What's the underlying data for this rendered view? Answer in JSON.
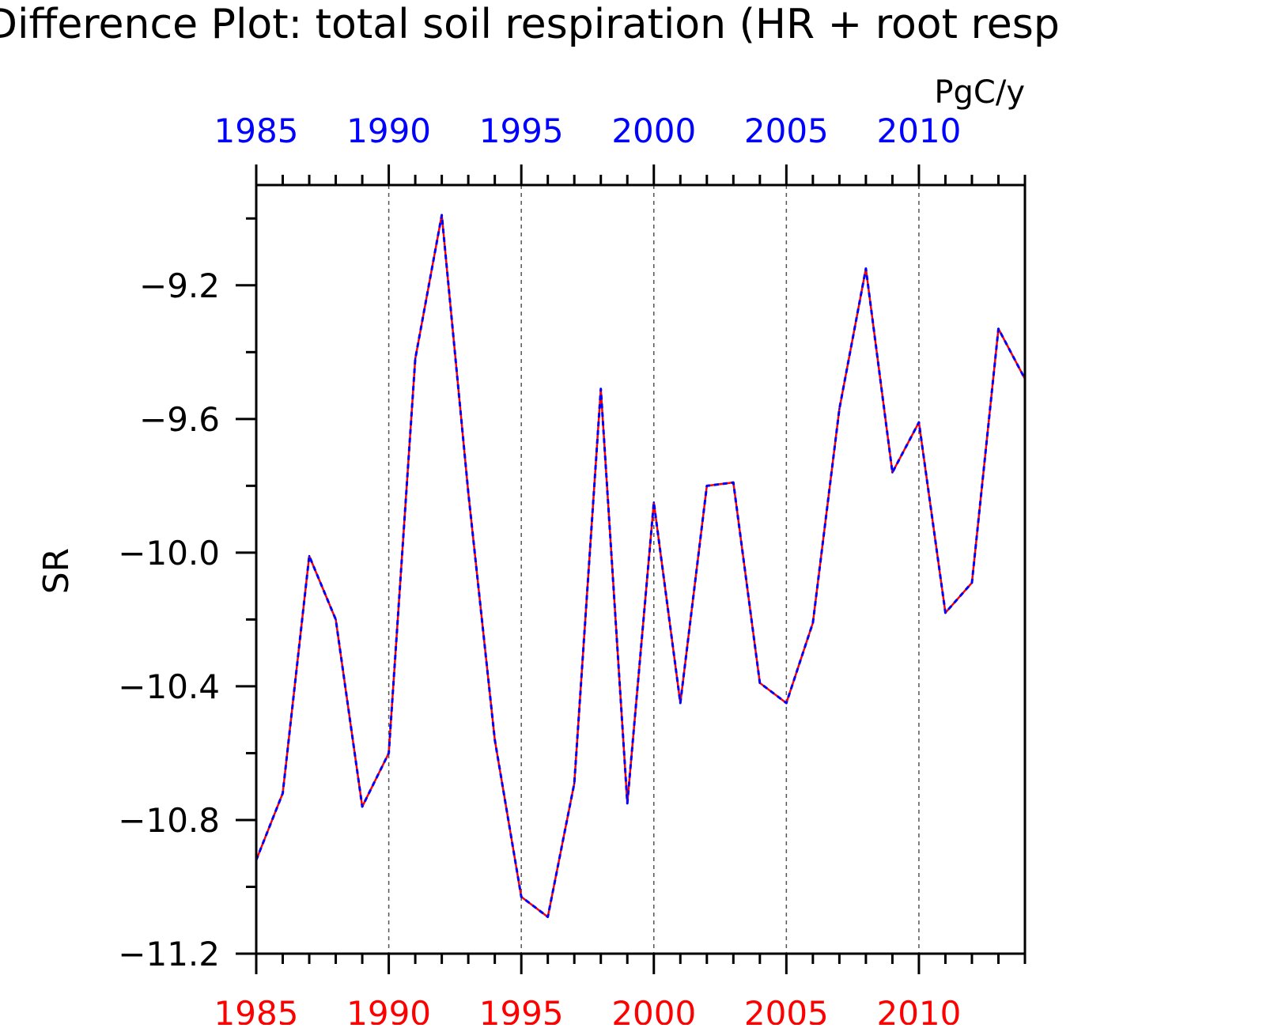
{
  "chart_data": {
    "type": "line",
    "title": "Difference Plot: total soil respiration (HR + root resp",
    "units": "PgC/y",
    "ylabel": "SR",
    "xlim": [
      1985,
      2014
    ],
    "ylim": [
      -11.2,
      -8.9
    ],
    "x_ticks_major": [
      1985,
      1990,
      1995,
      2000,
      2005,
      2010
    ],
    "y_ticks_major": [
      -9.2,
      -9.6,
      -10.0,
      -10.4,
      -10.8,
      -11.2
    ],
    "y_tick_labels": [
      "−9.2",
      "−9.6",
      "−10.0",
      "−10.4",
      "−10.8",
      "−11.2"
    ],
    "top_axis_color": "#0000ff",
    "bottom_axis_color": "#ff0000",
    "x": [
      1985,
      1986,
      1987,
      1988,
      1989,
      1990,
      1991,
      1992,
      1993,
      1994,
      1995,
      1996,
      1997,
      1998,
      1999,
      2000,
      2001,
      2002,
      2003,
      2004,
      2005,
      2006,
      2007,
      2008,
      2009,
      2010,
      2011,
      2012,
      2013,
      2014
    ],
    "series": [
      {
        "color": "#ff0000",
        "style": "solid",
        "values": [
          -10.92,
          -10.72,
          -10.01,
          -10.2,
          -10.76,
          -10.6,
          -9.42,
          -8.99,
          -9.82,
          -10.56,
          -11.03,
          -11.09,
          -10.69,
          -9.51,
          -10.75,
          -9.85,
          -10.45,
          -9.8,
          -9.79,
          -10.39,
          -10.45,
          -10.21,
          -9.57,
          -9.15,
          -9.76,
          -9.61,
          -10.18,
          -10.09,
          -9.33,
          -9.48
        ]
      },
      {
        "color": "#0000ff",
        "style": "dashed",
        "values": [
          -10.92,
          -10.72,
          -10.01,
          -10.2,
          -10.76,
          -10.6,
          -9.42,
          -8.99,
          -9.82,
          -10.56,
          -11.03,
          -11.09,
          -10.69,
          -9.51,
          -10.75,
          -9.85,
          -10.45,
          -9.8,
          -9.79,
          -10.39,
          -10.45,
          -10.21,
          -9.57,
          -9.15,
          -9.76,
          -9.61,
          -10.18,
          -10.09,
          -9.33,
          -9.48
        ]
      }
    ],
    "grid": "vertical dashed at major x ticks"
  }
}
